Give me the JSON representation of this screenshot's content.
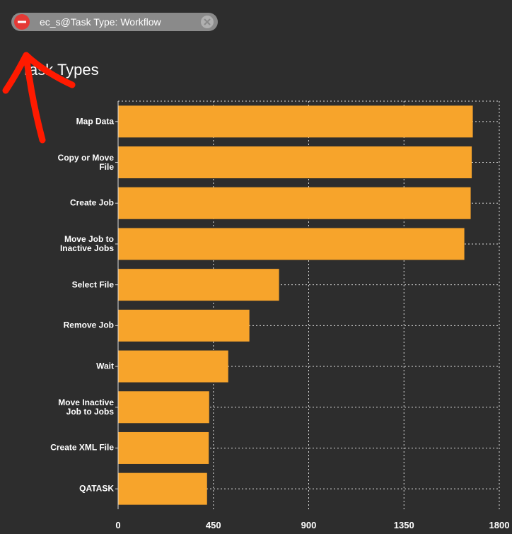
{
  "filter_chip": "ec_s@Task Type: Workflow",
  "chart_data": {
    "type": "hbar",
    "title": "Task Types",
    "categories": [
      "Map Data",
      "Copy or Move File",
      "Create Job",
      "Move Job to Inactive Jobs",
      "Select File",
      "Remove Job",
      "Wait",
      "Move Inactive Job to Jobs",
      "Create XML File",
      "QATASK"
    ],
    "values": [
      1675,
      1670,
      1665,
      1635,
      760,
      620,
      520,
      430,
      428,
      420
    ],
    "color": "#f7a42b",
    "xlim": [
      0,
      1800
    ],
    "xticks": [
      0,
      450,
      900,
      1350,
      1800
    ],
    "grid": true
  }
}
